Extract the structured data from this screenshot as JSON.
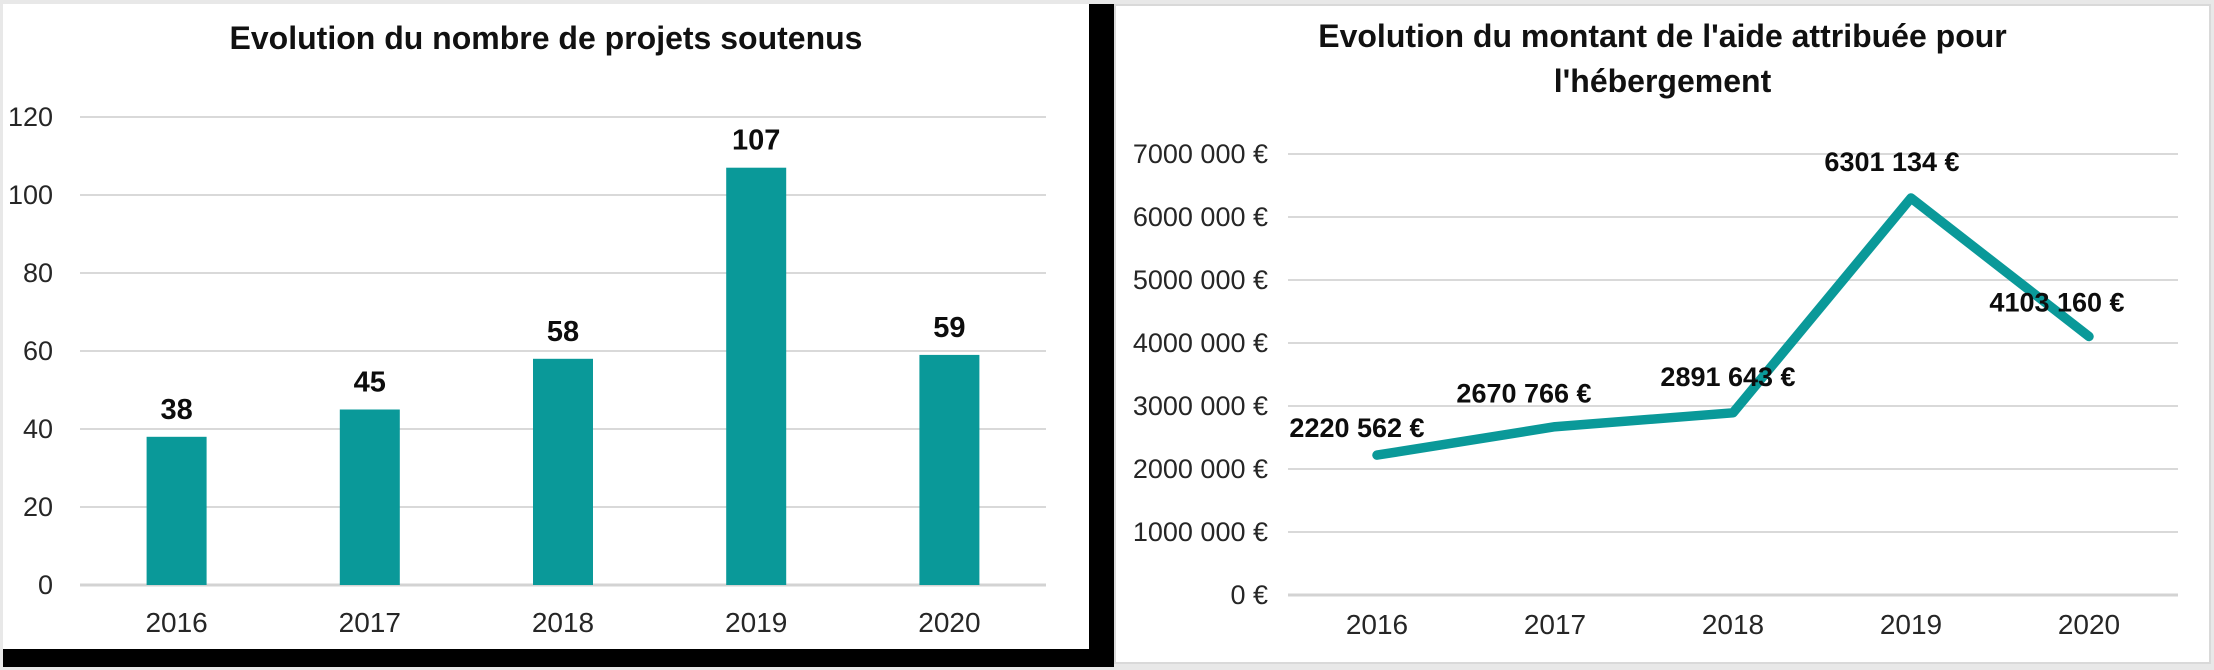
{
  "colors": {
    "series_teal": "#0a9999",
    "gridline": "#d9d9d9",
    "axis_line": "#d3d3d3",
    "tick_text": "#262626",
    "data_label_text": "#0d0d0d",
    "title_text": "#111111",
    "panel_border": "#d9d9d9",
    "divider_shadow": "#000000",
    "panel_background": "#ffffff"
  },
  "chart_data": [
    {
      "type": "bar",
      "title": "Evolution du nombre de projets soutenus",
      "categories": [
        "2016",
        "2017",
        "2018",
        "2019",
        "2020"
      ],
      "values": [
        38,
        45,
        58,
        107,
        59
      ],
      "data_labels": [
        "38",
        "45",
        "58",
        "107",
        "59"
      ],
      "ylim": [
        0,
        120
      ],
      "ytick_step": 20,
      "ytick_labels": [
        "0",
        "20",
        "40",
        "60",
        "80",
        "100",
        "120"
      ],
      "grid": true,
      "legend": "none"
    },
    {
      "type": "line",
      "title": "Evolution du montant de l'aide attribuée pour l'hébergement",
      "categories": [
        "2016",
        "2017",
        "2018",
        "2019",
        "2020"
      ],
      "values": [
        2220562,
        2670766,
        2891643,
        6301134,
        4103160
      ],
      "data_labels": [
        "2220 562 €",
        "2670 766 €",
        "2891 643 €",
        "6301 134 €",
        "4103 160 €"
      ],
      "ylim": [
        0,
        7000000
      ],
      "ytick_step": 1000000,
      "ytick_labels": [
        "0 €",
        "1000 000 €",
        "2000 000 €",
        "3000 000 €",
        "4000 000 €",
        "5000 000 €",
        "6000 000 €",
        "7000 000 €"
      ],
      "grid": true,
      "legend": "none"
    }
  ]
}
